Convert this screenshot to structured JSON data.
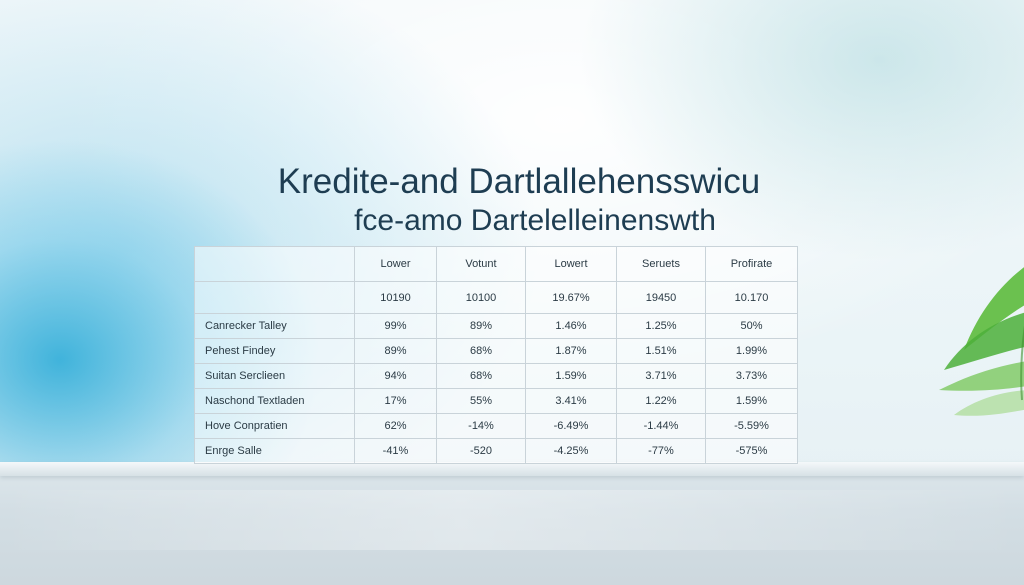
{
  "title": {
    "line1": "Kredite-and Dartlallehensswicu",
    "line2": "fce-amo Dartelelleinenswth"
  },
  "table": {
    "headers": [
      "",
      "Lower",
      "Votunt",
      "Lowert",
      "Seruets",
      "Profirate"
    ],
    "rows": [
      [
        "",
        "10190",
        "10100",
        "19.67%",
        "19450",
        "10.170"
      ],
      [
        "Canrecker Talley",
        "99%",
        "89%",
        "1.46%",
        "1.25%",
        "50%"
      ],
      [
        "Pehest Findey",
        "89%",
        "68%",
        "1.87%",
        "1.51%",
        "1.99%"
      ],
      [
        "Suitan Serclieen",
        "94%",
        "68%",
        "1.59%",
        "3.71%",
        "3.73%"
      ],
      [
        "Naschond Textladen",
        "17%",
        "55%",
        "3.41%",
        "1.22%",
        "1.59%"
      ],
      [
        "Hove Conpratien",
        "62%",
        "-14%",
        "-6.49%",
        "-1.44%",
        "-5.59%"
      ],
      [
        "Enrge Salle",
        "-41%",
        "-520",
        "-4.25%",
        "-77%",
        "-575%"
      ]
    ]
  },
  "colors": {
    "title": "#1e3d52",
    "grid": "#c9d3d9",
    "accent_blue": "#28aad7",
    "leaf_green": "#4caf3a"
  },
  "icons": [
    "plant-leaves-icon"
  ]
}
